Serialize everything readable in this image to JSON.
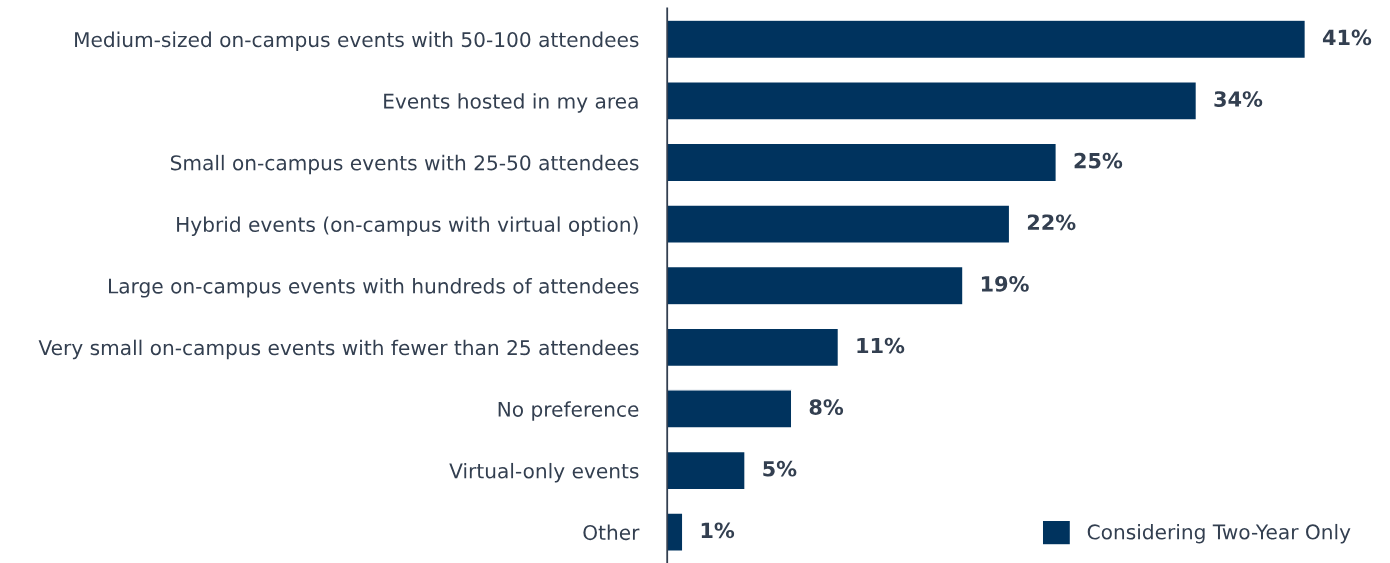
{
  "chart_data": {
    "type": "bar",
    "orientation": "horizontal",
    "categories": [
      "Medium-sized on-campus events with 50-100 attendees",
      "Events hosted in my area",
      "Small on-campus events with 25-50 attendees",
      "Hybrid events (on-campus with virtual option)",
      "Large on-campus events with hundreds of attendees",
      "Very small on-campus events with fewer than 25 attendees",
      "No preference",
      "Virtual-only events",
      "Other"
    ],
    "series": [
      {
        "name": "Considering Two-Year Only",
        "color": "#00335e",
        "values": [
          41,
          34,
          25,
          22,
          19,
          11,
          8,
          5,
          1
        ],
        "value_labels": [
          "41%",
          "34%",
          "25%",
          "22%",
          "19%",
          "11%",
          "8%",
          "5%",
          "1%"
        ]
      }
    ],
    "legend": "bottom right",
    "grid": false,
    "tick_labels": "y"
  }
}
